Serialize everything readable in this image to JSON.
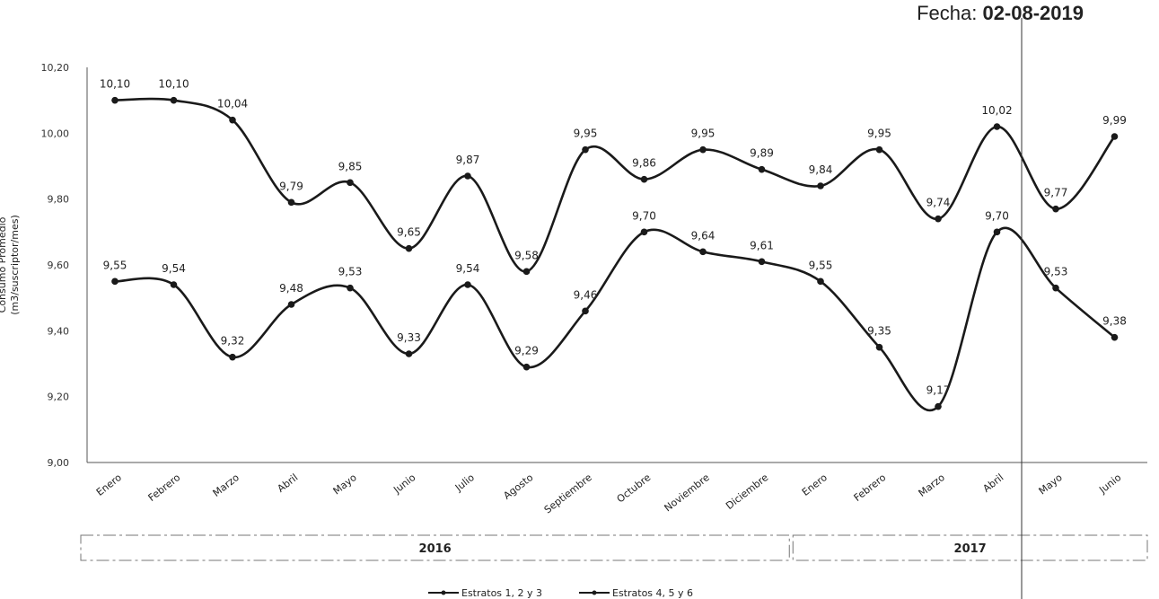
{
  "header": {
    "date_label": "Fecha:",
    "date_value": "02-08-2019"
  },
  "chart_data": {
    "type": "line",
    "title": "",
    "ylabel_lines": [
      "Consumo Promedio",
      "(m3/suscriptor/mes)"
    ],
    "ylim": [
      9.0,
      10.2
    ],
    "yticks": [
      "9,00",
      "9,20",
      "9,40",
      "9,60",
      "9,80",
      "10,00",
      "10,20"
    ],
    "categories": [
      "Enero",
      "Febrero",
      "Marzo",
      "Abril",
      "Mayo",
      "Junio",
      "Julio",
      "Agosto",
      "Septiembre",
      "Octubre",
      "Noviembre",
      "Diciembre",
      "Enero",
      "Febrero",
      "Marzo",
      "Abril",
      "Mayo",
      "Junio"
    ],
    "years": [
      {
        "label": "2016",
        "span": 12
      },
      {
        "label": "2017",
        "span": 6
      }
    ],
    "series": [
      {
        "name": "Estratos 1, 2 y 3",
        "values": [
          9.55,
          9.54,
          9.32,
          9.48,
          9.53,
          9.33,
          9.54,
          9.29,
          9.46,
          9.7,
          9.64,
          9.61,
          9.55,
          9.35,
          9.17,
          9.7,
          9.53,
          9.38
        ],
        "labels": [
          "9,55",
          "9,54",
          "9,32",
          "9,48",
          "9,53",
          "9,33",
          "9,54",
          "9,29",
          "9,46",
          "9,70",
          "9,64",
          "9,61",
          "9,55",
          "9,35",
          "9,17",
          "9,70",
          "9,53",
          "9,38"
        ]
      },
      {
        "name": "Estratos 4, 5 y 6",
        "values": [
          10.1,
          10.1,
          10.04,
          9.79,
          9.85,
          9.65,
          9.87,
          9.58,
          9.95,
          9.86,
          9.95,
          9.89,
          9.84,
          9.95,
          9.74,
          10.02,
          9.77,
          9.99
        ],
        "labels": [
          "10,10",
          "10,10",
          "10,04",
          "9,79",
          "9,85",
          "9,65",
          "9,87",
          "9,58",
          "9,95",
          "9,86",
          "9,95",
          "9,89",
          "9,84",
          "9,95",
          "9,74",
          "10,02",
          "9,77",
          "9,99"
        ]
      }
    ],
    "legend": "bottom-center",
    "grid": false,
    "line_color": "#1a1a1a"
  }
}
